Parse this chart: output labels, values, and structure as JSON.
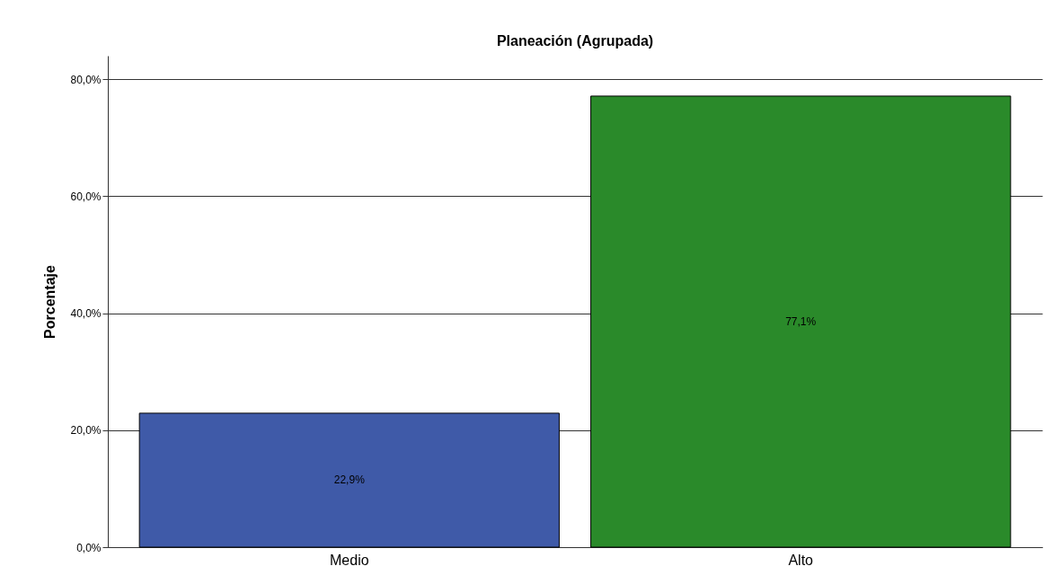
{
  "chart_data": {
    "type": "bar",
    "title": "Planeación (Agrupada)",
    "ylabel": "Porcentaje",
    "categories": [
      "Medio",
      "Alto"
    ],
    "values": [
      22.9,
      77.1
    ],
    "colors": [
      "#3f5aa8",
      "#2a8a2a"
    ],
    "value_labels": [
      "22,9%",
      "77,1%"
    ],
    "ylim": [
      0,
      84
    ],
    "yticks": [
      {
        "value": 0,
        "label": "0,0%"
      },
      {
        "value": 20,
        "label": "20,0%"
      },
      {
        "value": 40,
        "label": "40,0%"
      },
      {
        "value": 60,
        "label": "60,0%"
      },
      {
        "value": 80,
        "label": "80,0%"
      }
    ],
    "grid": "y"
  }
}
